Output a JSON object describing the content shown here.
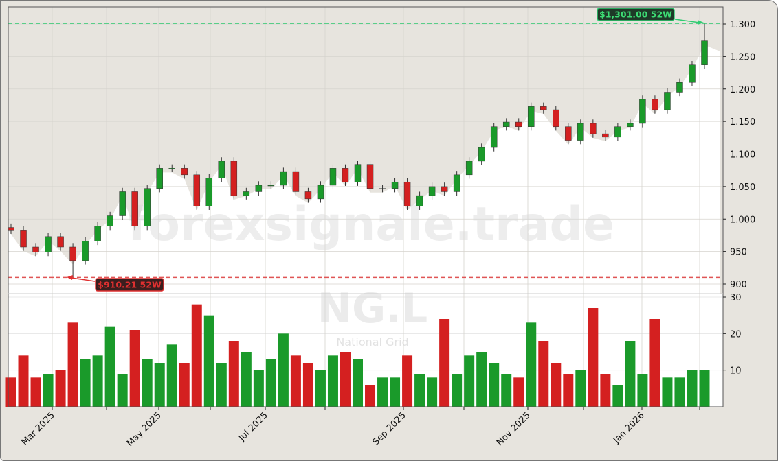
{
  "chart_data": {
    "type": "candlestick",
    "ticker_watermark": "NG.L",
    "company_watermark": "National Grid",
    "site_watermark": "forexsignale.trade",
    "price_axis": {
      "ticks": [
        "900",
        "950",
        "1.000",
        "1.050",
        "1.100",
        "1.150",
        "1.200",
        "1.250",
        "1.300"
      ],
      "tick_values": [
        900,
        950,
        1000,
        1050,
        1100,
        1150,
        1200,
        1250,
        1300
      ],
      "ylim": [
        888,
        1325
      ]
    },
    "volume_axis": {
      "ticks": [
        "10",
        "20",
        "30"
      ],
      "tick_values": [
        10,
        20,
        30
      ],
      "ylim": [
        0,
        31
      ]
    },
    "x_ticks": [
      "Mar 2025",
      "May 2025",
      "Jul 2025",
      "Sep 2025",
      "Nov 2025",
      "Jan 2026"
    ],
    "grid": true,
    "high_52w": {
      "value": 1301.0,
      "label": "$1,301.00 52W",
      "color": "#2ecc71"
    },
    "low_52w": {
      "value": 910.21,
      "label": "$910.21 52W",
      "color": "#e03030"
    },
    "colors": {
      "up": "#1a9a2a",
      "down": "#d42020",
      "background": "#e7e4de",
      "plot": "#ffffff"
    },
    "closes": [
      983,
      957,
      949,
      973,
      957,
      936,
      966,
      989,
      1005,
      1042,
      989,
      1047,
      1078,
      1078,
      1068,
      1020,
      1063,
      1089,
      1036,
      1042,
      1052,
      1052,
      1073,
      1042,
      1031,
      1052,
      1078,
      1057,
      1084,
      1047,
      1047,
      1057,
      1020,
      1036,
      1050,
      1042,
      1068,
      1089,
      1110,
      1142,
      1149,
      1142,
      1173,
      1168,
      1142,
      1121,
      1147,
      1131,
      1126,
      1142,
      1147,
      1184,
      1168,
      1195,
      1210,
      1237,
      1274
    ],
    "volumes": [
      8,
      14,
      8,
      9,
      10,
      23,
      13,
      14,
      22,
      9,
      21,
      13,
      12,
      17,
      12,
      28,
      25,
      12,
      18,
      15,
      10,
      13,
      20,
      14,
      12,
      10,
      14,
      15,
      13,
      6,
      8,
      8,
      14,
      9,
      8,
      24,
      9,
      14,
      15,
      12,
      9,
      8,
      23,
      18,
      12,
      9,
      10,
      27,
      9,
      6,
      18,
      9,
      24,
      8,
      8,
      10,
      10
    ]
  }
}
